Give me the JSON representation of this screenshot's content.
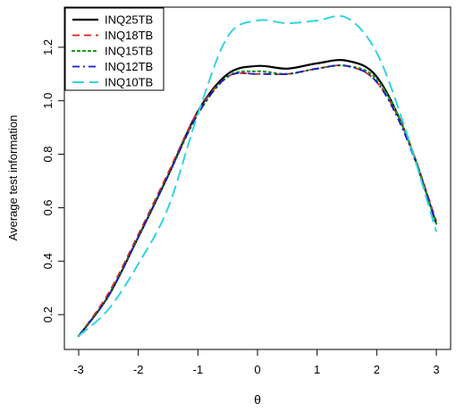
{
  "chart_data": {
    "type": "line",
    "xlabel": "θ",
    "ylabel": "Average test information",
    "xlim": [
      -3,
      3
    ],
    "ylim": [
      0.12,
      1.32
    ],
    "x_ticks": [
      -3,
      -2,
      -1,
      0,
      1,
      2,
      3
    ],
    "y_ticks": [
      0.2,
      0.4,
      0.6,
      0.8,
      1.0,
      1.2
    ],
    "x_tick_labels": [
      "-3",
      "-2",
      "-1",
      "0",
      "1",
      "2",
      "3"
    ],
    "y_tick_labels": [
      "0.2",
      "0.4",
      "0.6",
      "0.8",
      "1.0",
      "1.2"
    ],
    "grid": false,
    "legend_position": "top-left",
    "x": [
      -3,
      -2.5,
      -2,
      -1.5,
      -1,
      -0.5,
      0,
      0.5,
      1,
      1.5,
      2,
      2.5,
      3
    ],
    "series": [
      {
        "name": "INQ25TB",
        "color": "#000000",
        "dash": "solid",
        "width": 2.2,
        "values": [
          0.12,
          0.27,
          0.49,
          0.72,
          0.96,
          1.1,
          1.13,
          1.12,
          1.14,
          1.15,
          1.09,
          0.87,
          0.54
        ]
      },
      {
        "name": "INQ18TB",
        "color": "#dd2020",
        "dash": "dashed",
        "width": 1.8,
        "values": [
          0.12,
          0.28,
          0.5,
          0.73,
          0.96,
          1.09,
          1.1,
          1.1,
          1.12,
          1.13,
          1.07,
          0.87,
          0.55
        ]
      },
      {
        "name": "INQ15TB",
        "color": "#1a9a1a",
        "dash": "dotted",
        "width": 2.2,
        "values": [
          0.12,
          0.27,
          0.49,
          0.72,
          0.95,
          1.09,
          1.11,
          1.1,
          1.12,
          1.13,
          1.08,
          0.87,
          0.54
        ]
      },
      {
        "name": "INQ12TB",
        "color": "#1a1acc",
        "dash": "dashdot",
        "width": 1.8,
        "values": [
          0.12,
          0.27,
          0.49,
          0.72,
          0.95,
          1.09,
          1.1,
          1.1,
          1.12,
          1.13,
          1.07,
          0.86,
          0.54
        ]
      },
      {
        "name": "INQ10TB",
        "color": "#33d3e0",
        "dash": "longdash",
        "width": 2.0,
        "values": [
          0.12,
          0.22,
          0.39,
          0.6,
          0.95,
          1.24,
          1.3,
          1.29,
          1.3,
          1.31,
          1.18,
          0.88,
          0.51
        ]
      }
    ]
  }
}
